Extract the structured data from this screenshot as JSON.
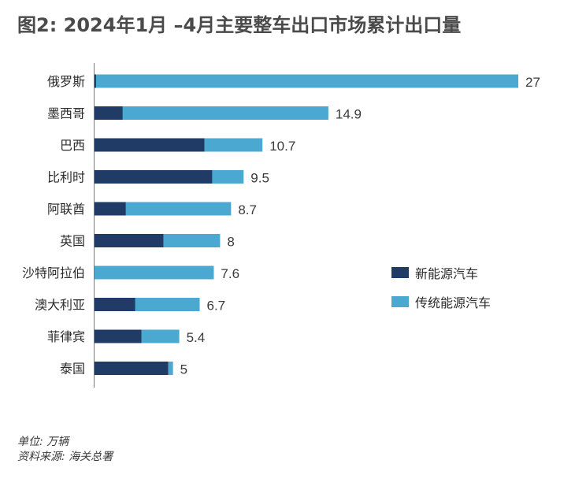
{
  "title": "图2: 2024年1月 –4月主要整车出口市场累计出口量",
  "footer": {
    "unit": "单位: 万辆",
    "source": "资料来源: 海关总署"
  },
  "chart_data": {
    "type": "bar",
    "orientation": "horizontal",
    "stacked": true,
    "categories": [
      "俄罗斯",
      "墨西哥",
      "巴西",
      "比利时",
      "阿联酋",
      "英国",
      "沙特阿拉伯",
      "澳大利亚",
      "菲律宾",
      "泰国"
    ],
    "series": [
      {
        "name": "新能源汽车",
        "color": "#203c66",
        "values": [
          0.1,
          1.8,
          7.0,
          7.5,
          2.0,
          4.4,
          0,
          2.6,
          3.0,
          4.7
        ]
      },
      {
        "name": "传统能源汽车",
        "color": "#4ba8d0",
        "values": [
          26.9,
          13.1,
          3.7,
          2.0,
          6.7,
          3.6,
          7.6,
          4.1,
          2.4,
          0.3
        ]
      }
    ],
    "totals": [
      "27",
      "14.9",
      "10.7",
      "9.5",
      "8.7",
      "8",
      "7.6",
      "6.7",
      "5.4",
      "5"
    ],
    "xlim": [
      0,
      27
    ],
    "legend_position": "right",
    "grid": false
  }
}
